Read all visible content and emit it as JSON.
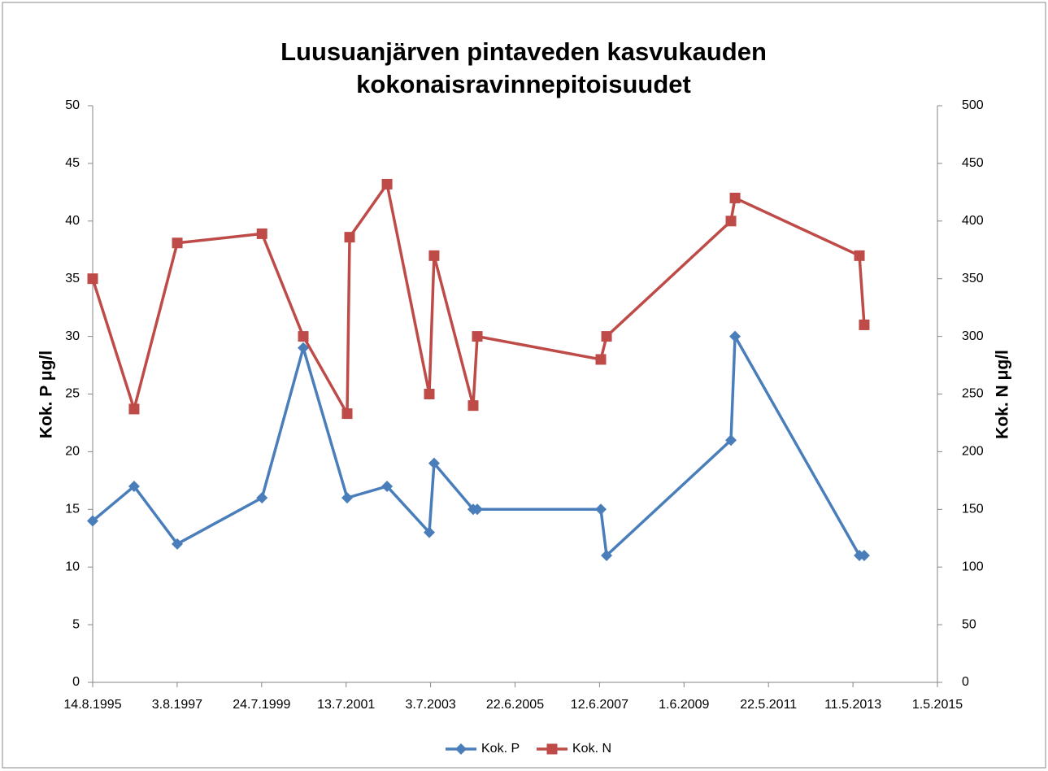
{
  "chart_data": {
    "type": "line",
    "title": "Luusuanjärven pintaveden kasvukauden kokonaisravinnepitoisuudet",
    "ylabel": "Kok. P μg/l",
    "y2label": "Kok. N μg/l",
    "xlim": [
      "1995-08-14",
      "2015-05-01"
    ],
    "xticks": [
      {
        "value": "1995-08-14",
        "label": "14.8.1995"
      },
      {
        "value": "1997-08-03",
        "label": "3.8.1997"
      },
      {
        "value": "1999-07-24",
        "label": "24.7.1999"
      },
      {
        "value": "2001-07-13",
        "label": "13.7.2001"
      },
      {
        "value": "2003-07-03",
        "label": "3.7.2003"
      },
      {
        "value": "2005-06-22",
        "label": "22.6.2005"
      },
      {
        "value": "2007-06-12",
        "label": "12.6.2007"
      },
      {
        "value": "2009-06-01",
        "label": "1.6.2009"
      },
      {
        "value": "2011-05-22",
        "label": "22.5.2011"
      },
      {
        "value": "2013-05-11",
        "label": "11.5.2013"
      },
      {
        "value": "2015-05-01",
        "label": "1.5.2015"
      }
    ],
    "ylim": [
      0,
      50
    ],
    "yticks": [
      0,
      5,
      10,
      15,
      20,
      25,
      30,
      35,
      40,
      45,
      50
    ],
    "y2lim": [
      0,
      500
    ],
    "y2ticks": [
      0,
      50,
      100,
      150,
      200,
      250,
      300,
      350,
      400,
      450,
      500
    ],
    "legend": "bottom",
    "grid": false,
    "series": [
      {
        "name": "Kok. P",
        "color": "#4a7ebb",
        "marker": "diamond",
        "x": [
          "1995-08-14",
          "1996-08-01",
          "1997-08-04",
          "1999-07-27",
          "2000-07-13",
          "2001-07-22",
          "2002-06-27",
          "2003-06-22",
          "2003-08-02",
          "2004-06-30",
          "2004-08-04",
          "2007-06-23",
          "2007-08-11",
          "2010-07-06",
          "2010-08-10",
          "2013-07-05",
          "2013-08-15"
        ],
        "values": [
          14,
          17,
          12,
          16,
          29,
          16,
          17,
          13,
          19,
          15,
          15,
          15,
          11,
          21,
          30,
          11,
          11
        ]
      },
      {
        "name": "Kok. N",
        "color": "#be4b48",
        "marker": "square",
        "axis": "y2",
        "x": [
          "1995-08-14",
          "1996-08-01",
          "1997-08-04",
          "1999-07-27",
          "2000-07-13",
          "2001-07-22",
          "2001-08-12",
          "2002-06-27",
          "2003-06-22",
          "2003-08-02",
          "2004-06-30",
          "2004-08-04",
          "2007-06-23",
          "2007-08-11",
          "2010-07-06",
          "2010-08-10",
          "2013-07-05",
          "2013-08-15"
        ],
        "values": [
          350,
          237,
          381,
          389,
          300,
          233,
          386,
          432,
          250,
          370,
          240,
          300,
          280,
          300,
          400,
          420,
          370,
          310
        ]
      }
    ]
  }
}
